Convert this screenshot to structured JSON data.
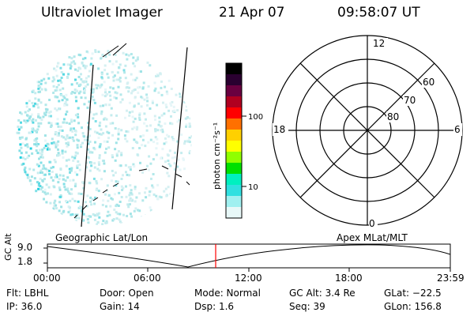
{
  "header": {
    "title": "Ultraviolet Imager",
    "date": "21 Apr 07",
    "time": "09:58:07 UT"
  },
  "colorbar": {
    "unit_label": "photon cm⁻²s⁻¹",
    "ticks": [
      "100",
      "10"
    ],
    "colors": [
      "#000000",
      "#2a0030",
      "#6a0040",
      "#b00020",
      "#ff0000",
      "#ff7000",
      "#ffd000",
      "#ffff00",
      "#90ff00",
      "#00e000",
      "#00f0c0",
      "#30e0e0",
      "#a0f0f0",
      "#e8f8f8"
    ]
  },
  "polar_plot": {
    "mlt_labels": {
      "top": "12",
      "left": "18",
      "right": "6",
      "bottom": "0"
    },
    "lat_labels": [
      "60",
      "70",
      "80"
    ]
  },
  "timeline": {
    "left_label": "Geographic Lat/Lon",
    "right_label": "Apex  MLat/MLT",
    "axis_title": "GC Alt",
    "y_ticks": [
      "9.0",
      "1.8"
    ],
    "x_ticks": [
      "00:00",
      "06:00",
      "12:00",
      "18:00",
      "23:59"
    ],
    "marker_color": "#ff0000"
  },
  "info": {
    "flt": "Flt: LBHL",
    "ip": "IP: 36.0",
    "door": "Door: Open",
    "gain": "Gain: 14",
    "mode": "Mode: Normal",
    "dsp": "Dsp:    1.6",
    "gc_alt": "GC Alt: 3.4 Re",
    "seq": "Seq: 39",
    "glat": "GLat: −22.5",
    "glon": "GLon: 156.8"
  }
}
